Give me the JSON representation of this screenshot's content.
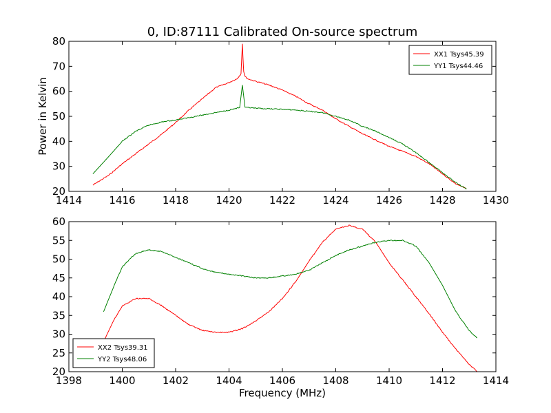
{
  "figure": {
    "title": "0, ID:87111 Calibrated On-source spectrum",
    "xlabel": "Frequency (MHz)",
    "ylabel": "Power in Kelvin"
  },
  "chart_data": [
    {
      "type": "line",
      "title": "0, ID:87111 Calibrated On-source spectrum",
      "ylabel": "Power in Kelvin",
      "xlim": [
        1414,
        1430
      ],
      "ylim": [
        20,
        80
      ],
      "xticks": [
        1414,
        1416,
        1418,
        1420,
        1422,
        1424,
        1426,
        1428,
        1430
      ],
      "yticks": [
        20,
        30,
        40,
        50,
        60,
        70,
        80
      ],
      "grid": false,
      "legend_position": "top-right",
      "series": [
        {
          "name": "XX1 Tsys45.39",
          "color": "#ff0000",
          "x": [
            1414.9,
            1415.5,
            1416,
            1416.5,
            1417,
            1417.5,
            1418,
            1418.5,
            1419,
            1419.5,
            1420,
            1420.3,
            1420.45,
            1420.5,
            1420.55,
            1420.6,
            1420.7,
            1421,
            1421.5,
            1422,
            1422.5,
            1423,
            1423.5,
            1424,
            1424.5,
            1425,
            1425.5,
            1426,
            1426.5,
            1427,
            1427.5,
            1428,
            1428.5,
            1428.9
          ],
          "y": [
            22.5,
            26.5,
            31,
            35,
            39,
            43,
            47.5,
            52.5,
            57,
            61.5,
            63.5,
            65,
            67,
            79,
            68,
            66,
            65,
            64,
            62.5,
            60.5,
            58,
            55,
            52.5,
            49,
            46,
            43,
            40.5,
            38,
            36,
            34,
            31,
            27,
            23,
            21
          ]
        },
        {
          "name": "YY1 Tsys44.46",
          "color": "#008000",
          "x": [
            1414.9,
            1415.5,
            1416,
            1416.5,
            1417,
            1417.5,
            1418,
            1418.5,
            1419,
            1419.5,
            1420,
            1420.4,
            1420.5,
            1420.6,
            1420.7,
            1421,
            1421.5,
            1422,
            1422.5,
            1423,
            1423.5,
            1424,
            1424.5,
            1425,
            1425.5,
            1426,
            1426.5,
            1427,
            1427.5,
            1428,
            1428.5,
            1428.9
          ],
          "y": [
            27,
            34,
            40,
            44,
            46.5,
            47.8,
            48.5,
            49.5,
            50.5,
            51.5,
            52.5,
            53.5,
            62.5,
            53.5,
            53.5,
            53.2,
            53,
            52.8,
            52.5,
            52,
            51.5,
            50,
            48.5,
            46,
            44,
            41.5,
            39,
            35.5,
            31.5,
            27.5,
            23.5,
            21
          ]
        }
      ]
    },
    {
      "type": "line",
      "xlabel": "Frequency (MHz)",
      "xlim": [
        1398,
        1414
      ],
      "ylim": [
        20,
        60
      ],
      "xticks": [
        1398,
        1400,
        1402,
        1404,
        1406,
        1408,
        1410,
        1412,
        1414
      ],
      "yticks": [
        20,
        25,
        30,
        35,
        40,
        45,
        50,
        55,
        60
      ],
      "grid": false,
      "legend_position": "bottom-left",
      "series": [
        {
          "name": "XX2 Tsys39.31",
          "color": "#ff0000",
          "x": [
            1399.3,
            1399.7,
            1400,
            1400.5,
            1401,
            1401.5,
            1402,
            1402.5,
            1403,
            1403.5,
            1404,
            1404.5,
            1405,
            1405.5,
            1406,
            1406.5,
            1407,
            1407.5,
            1408,
            1408.5,
            1409,
            1409.5,
            1410,
            1410.5,
            1411,
            1411.5,
            1412,
            1412.5,
            1413,
            1413.3
          ],
          "y": [
            28,
            34,
            37.5,
            39.5,
            39.5,
            37.5,
            35,
            32.5,
            31,
            30.5,
            30.5,
            31.5,
            33.5,
            36,
            39.5,
            44,
            49.5,
            54.5,
            58,
            59,
            58,
            54.5,
            49,
            44.5,
            40,
            35.5,
            30.5,
            26,
            22,
            20
          ]
        },
        {
          "name": "YY2 Tsys48.06",
          "color": "#008000",
          "x": [
            1399.3,
            1399.7,
            1400,
            1400.5,
            1401,
            1401.5,
            1402,
            1402.5,
            1403,
            1403.5,
            1404,
            1404.5,
            1405,
            1405.5,
            1406,
            1406.5,
            1407,
            1407.5,
            1408,
            1408.5,
            1409,
            1409.5,
            1410,
            1410.5,
            1411,
            1411.5,
            1412,
            1412.5,
            1413,
            1413.3
          ],
          "y": [
            36,
            43,
            48,
            51.5,
            52.5,
            52,
            50.5,
            49,
            47.5,
            46.5,
            46,
            45.5,
            45,
            45,
            45.5,
            46,
            47,
            49,
            51,
            52.5,
            53.5,
            54.5,
            55,
            55,
            53.5,
            49,
            43,
            36,
            31,
            29
          ]
        }
      ]
    }
  ]
}
